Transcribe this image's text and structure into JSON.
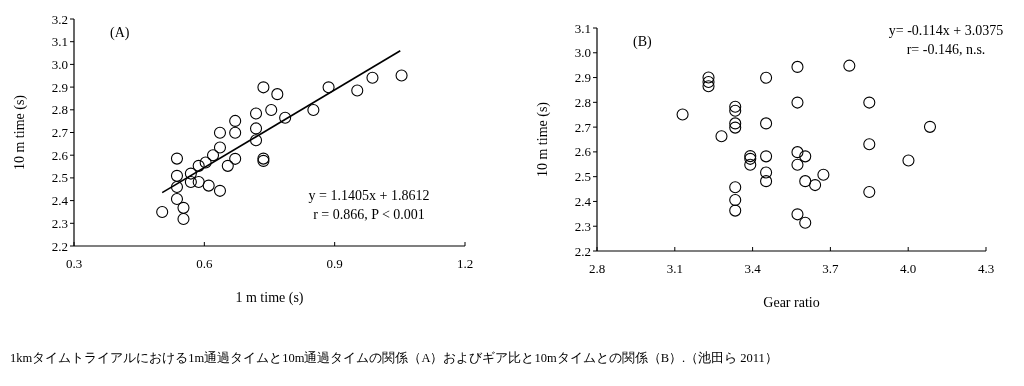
{
  "chart_data": [
    {
      "type": "scatter",
      "xlabel": "1 m time (s)",
      "ylabel": "10 m time (s)",
      "xlim": [
        0.3,
        1.2
      ],
      "ylim": [
        2.2,
        3.2
      ],
      "xticks": [
        0.3,
        0.6,
        0.9,
        1.2
      ],
      "yticks": [
        2.2,
        2.3,
        2.4,
        2.5,
        2.6,
        2.7,
        2.8,
        2.9,
        {
          "value": 3.0,
          "label": "3.0"
        },
        3.1,
        3.2
      ],
      "grid": false,
      "marker": "circle",
      "annotations": [
        "(A)",
        "y = 1.1405x + 1.8612\nr = 0.866, P < 0.001",
        "1kmタイムトライアルにおける1m通過タイムと10m通過タイムの関係（A）およびギア比と10mタイムとの関係（B）.（池田ら 2011）"
      ],
      "series": [
        {
          "color": "#000000",
          "x": [
            0.503,
            0.537,
            0.537,
            0.537,
            0.537,
            0.552,
            0.552,
            0.569,
            0.569,
            0.587,
            0.587,
            0.603,
            0.61,
            0.62,
            0.636,
            0.636,
            0.636,
            0.654,
            0.671,
            0.671,
            0.671,
            0.719,
            0.719,
            0.719,
            0.736,
            0.736,
            0.736,
            0.754,
            0.768,
            0.786,
            0.851,
            0.886,
            0.952,
            0.987,
            1.054
          ],
          "values": [
            2.35,
            2.585,
            2.509,
            2.46,
            2.407,
            2.368,
            2.319,
            2.519,
            2.482,
            2.553,
            2.482,
            2.568,
            2.466,
            2.6,
            2.699,
            2.634,
            2.443,
            2.553,
            2.751,
            2.699,
            2.584,
            2.784,
            2.718,
            2.666,
            2.899,
            2.585,
            2.575,
            2.799,
            2.869,
            2.765,
            2.799,
            2.899,
            2.885,
            2.941,
            2.951
          ]
        },
        {
          "type": "line",
          "color": "#000000",
          "line_style": "solid",
          "marker": "none",
          "x": [
            0.503,
            1.051
          ],
          "values": [
            2.435,
            3.06
          ]
        }
      ]
    },
    {
      "type": "scatter",
      "xlabel": "Gear ratio",
      "ylabel": "10 m time (s)",
      "xlim": [
        2.8,
        4.3
      ],
      "ylim": [
        2.2,
        3.1
      ],
      "xticks": [
        2.8,
        3.1,
        3.4,
        3.7,
        {
          "value": 4.0,
          "label": "4.0"
        },
        4.3
      ],
      "yticks": [
        2.2,
        2.3,
        2.4,
        2.5,
        2.6,
        2.7,
        2.8,
        2.9,
        {
          "value": 3.0,
          "label": "3.0"
        },
        3.1
      ],
      "grid": false,
      "marker": "circle",
      "annotations": [
        "(B)",
        "y= -0.114x + 3.0375\nr= -0.146, n.s."
      ],
      "series": [
        {
          "color": "#000000",
          "x": [
            3.13,
            3.23,
            3.23,
            3.23,
            3.28,
            3.333,
            3.333,
            3.333,
            3.333,
            3.333,
            3.333,
            3.333,
            3.391,
            3.391,
            3.391,
            3.452,
            3.452,
            3.452,
            3.452,
            3.452,
            3.573,
            3.573,
            3.573,
            3.573,
            3.573,
            3.603,
            3.603,
            3.603,
            3.641,
            3.673,
            3.773,
            3.85,
            3.85,
            3.85,
            4.001,
            4.084
          ],
          "values": [
            2.751,
            2.9,
            2.882,
            2.865,
            2.663,
            2.782,
            2.766,
            2.715,
            2.698,
            2.457,
            2.406,
            2.363,
            2.583,
            2.572,
            2.548,
            2.899,
            2.715,
            2.582,
            2.517,
            2.482,
            2.943,
            2.799,
            2.599,
            2.548,
            2.348,
            2.582,
            2.482,
            2.314,
            2.466,
            2.508,
            2.948,
            2.799,
            2.631,
            2.438,
            2.565,
            2.701
          ]
        }
      ]
    }
  ]
}
